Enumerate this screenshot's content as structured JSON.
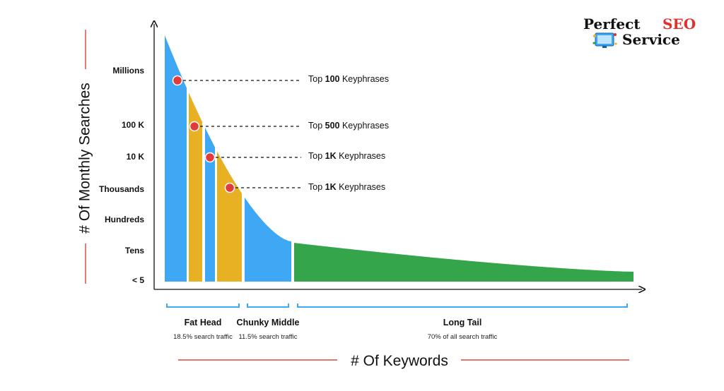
{
  "logo": {
    "word1": "Perfect",
    "word2": "SEO",
    "word3": "Service",
    "color_dark": "#111111",
    "color_accent": "#e0312b"
  },
  "chart_data": {
    "type": "area",
    "ylabel": "# Of Monthly Searches",
    "xlabel": "# Of Keywords",
    "y_ticks": [
      "Millions",
      "100 K",
      "10 K",
      "Thousands",
      "Hundreds",
      "Tens",
      "< 5"
    ],
    "segments": [
      {
        "name": "Fat Head",
        "subtitle": "18.5% search traffic",
        "color": "#3ea8f5"
      },
      {
        "name": "Chunky Middle",
        "subtitle": "11.5% search traffic",
        "color": "#3ea8f5"
      },
      {
        "name": "Long Tail",
        "subtitle": "70% of all search traffic",
        "color": "#34a54a"
      }
    ],
    "colors": {
      "blue": "#3ea8f5",
      "gold": "#e8b124",
      "green": "#34a54a",
      "marker": "#e23b3b",
      "accent_line": "#d9483b",
      "bracket": "#3ea8f5"
    },
    "callouts": [
      {
        "prefix": "Top ",
        "bold": "100",
        "suffix": " Keyphrases",
        "y_tick": "Millions"
      },
      {
        "prefix": "Top ",
        "bold": "500",
        "suffix": " Keyphrases",
        "y_tick": "100 K"
      },
      {
        "prefix": "Top ",
        "bold": "1K",
        "suffix": " Keyphrases",
        "y_tick": "10 K"
      },
      {
        "prefix": "Top ",
        "bold": "1K",
        "suffix": " Keyphrases",
        "y_tick": "Thousands"
      }
    ]
  }
}
